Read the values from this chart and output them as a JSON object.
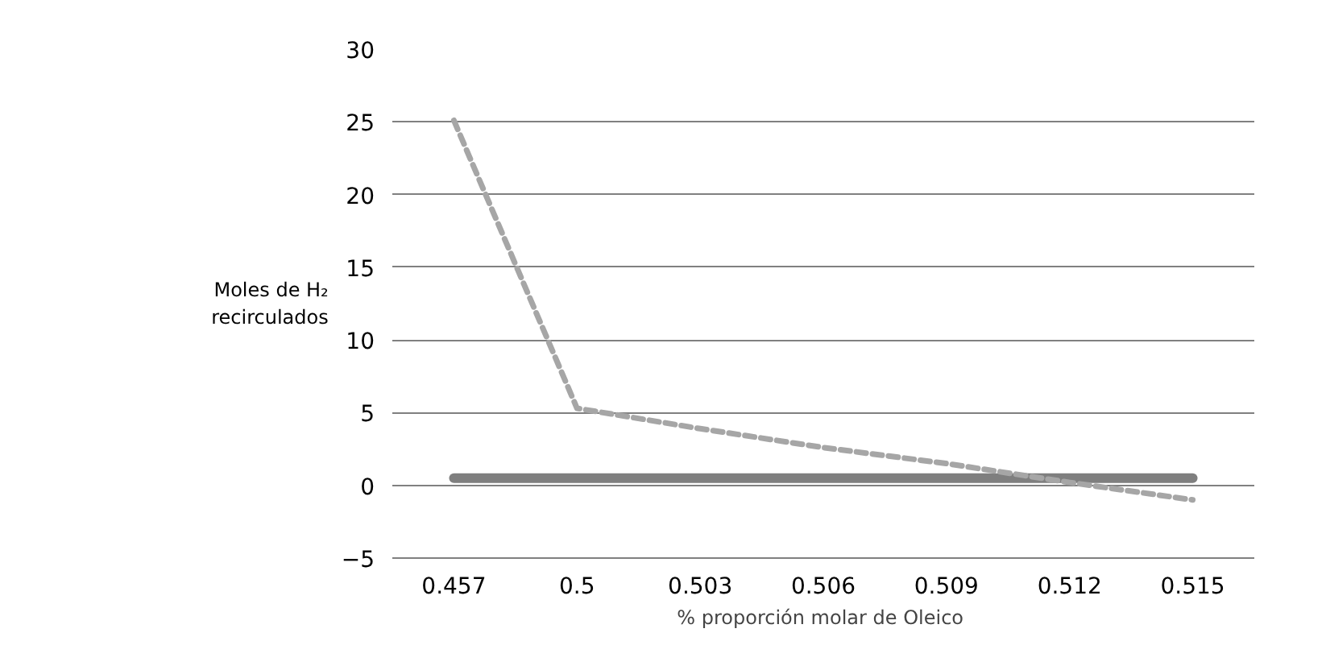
{
  "chart_data": {
    "type": "line",
    "xlabel": "% proporción molar de  Oleico",
    "ylabel": "Moles de H₂ recirculados",
    "categories": [
      "0.457",
      "0.5",
      "0.503",
      "0.506",
      "0.509",
      "0.512",
      "0.515"
    ],
    "series": [
      {
        "color": "#7f7f7f",
        "line_style": "solid",
        "values": [
          0.5,
          0.5,
          0.5,
          0.5,
          0.5,
          0.5,
          0.5
        ]
      },
      {
        "color": "#a6a6a6",
        "line_style": "dashed",
        "values": [
          25.1,
          5.3,
          3.9,
          2.6,
          1.5,
          0.2,
          -1.0
        ]
      }
    ],
    "ylim": [
      -5,
      30
    ],
    "yticks": [
      -5,
      0,
      5,
      10,
      15,
      20,
      25,
      30
    ],
    "grid": "y"
  }
}
